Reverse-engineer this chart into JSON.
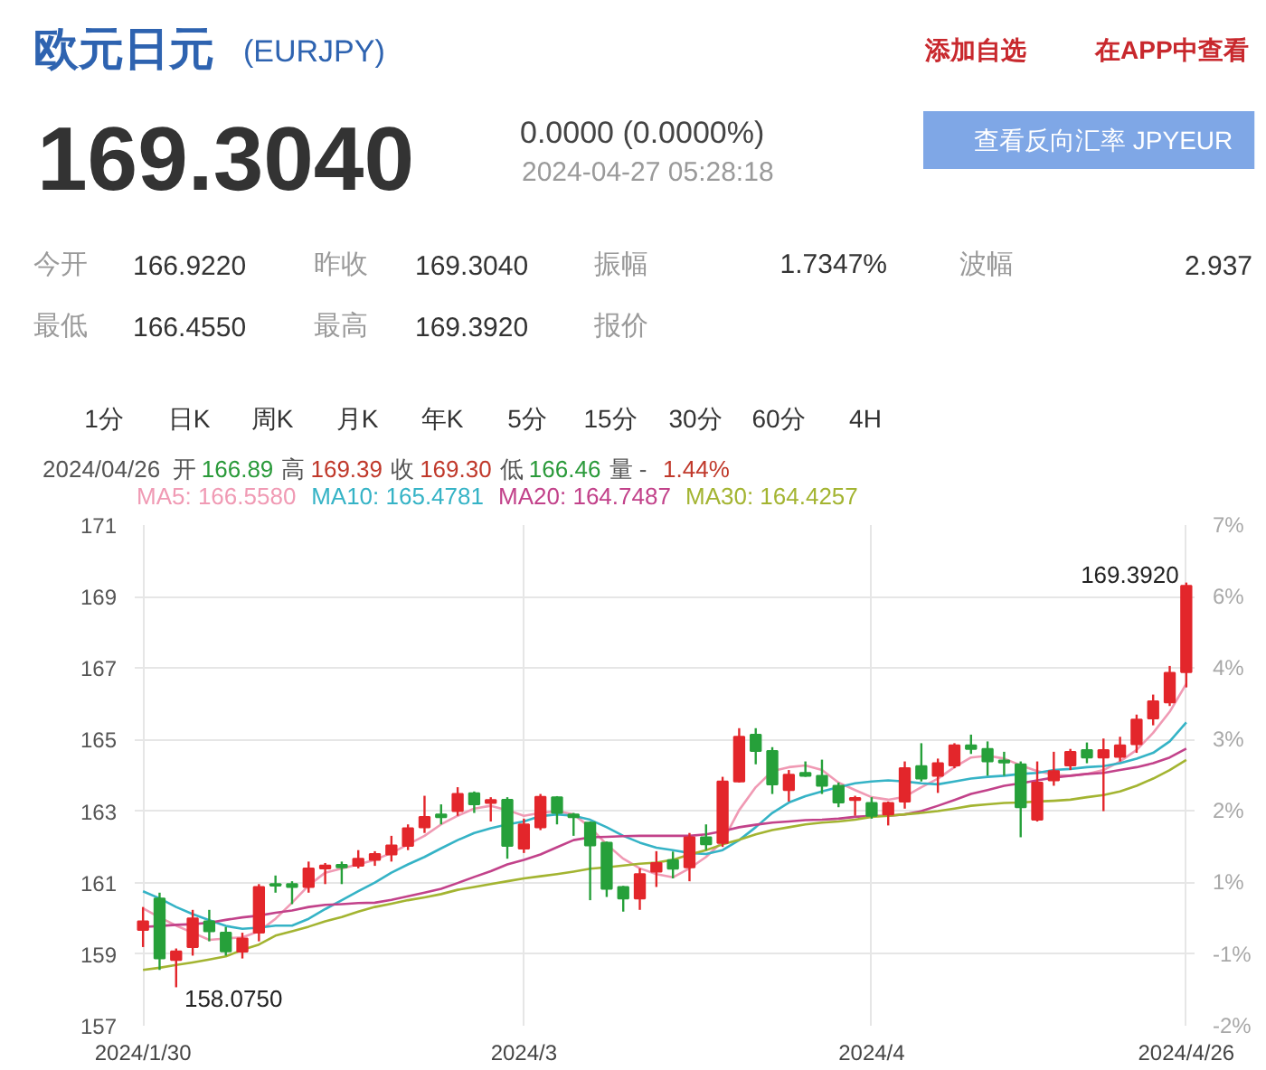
{
  "chart_data": {
    "type": "candlestick",
    "title": "欧元日元",
    "subtitle": "(EURJPY)",
    "annotations": [
      "添加自选",
      "在APP中查看",
      "169.3040",
      "0.0000 (0.0000%)",
      "2024-04-27 05:28:18",
      "查看反向汇率 JPYEUR",
      "今开",
      "166.9220",
      "昨收",
      "169.3040",
      "振幅",
      "1.7347%",
      "波幅",
      "2.937",
      "最低",
      "166.4550",
      "最高",
      "169.3920",
      "报价",
      "1分",
      "日K",
      "周K",
      "月K",
      "年K",
      "5分",
      "15分",
      "30分",
      "60分",
      "4H",
      "2024/04/26",
      "开",
      "166.89",
      "高",
      "169.39",
      "收",
      "169.30",
      "低",
      "166.46",
      "量 -",
      "1.44%",
      "158.0750",
      {
        "text": "169.3920",
        "x": "2024/4/26",
        "y": 169.392
      }
    ],
    "categories": [
      "2024/1/30",
      null,
      null,
      null,
      null,
      null,
      null,
      null,
      null,
      null,
      null,
      null,
      null,
      null,
      null,
      null,
      null,
      null,
      null,
      null,
      null,
      null,
      null,
      "2024/3",
      null,
      null,
      null,
      null,
      null,
      null,
      null,
      null,
      null,
      null,
      null,
      null,
      null,
      null,
      null,
      null,
      null,
      null,
      null,
      null,
      "2024/4",
      null,
      null,
      null,
      null,
      null,
      null,
      null,
      null,
      null,
      null,
      null,
      null,
      null,
      null,
      null,
      null,
      null,
      null,
      "2024/4/26"
    ],
    "ohlc": [
      [
        159.68,
        160.32,
        159.2,
        159.92
      ],
      [
        160.56,
        160.72,
        158.56,
        158.88
      ],
      [
        158.84,
        159.16,
        158.075,
        159.08
      ],
      [
        159.2,
        160.24,
        158.96,
        160.0
      ],
      [
        159.92,
        160.24,
        159.36,
        159.64
      ],
      [
        159.6,
        159.76,
        158.96,
        159.08
      ],
      [
        159.07,
        159.6,
        158.88,
        159.44
      ],
      [
        159.6,
        160.96,
        159.36,
        160.88
      ],
      [
        160.96,
        161.2,
        160.72,
        160.92
      ],
      [
        160.96,
        161.04,
        160.4,
        160.88
      ],
      [
        160.88,
        161.59,
        160.72,
        161.4
      ],
      [
        161.4,
        161.55,
        160.96,
        161.48
      ],
      [
        161.5,
        161.59,
        160.96,
        161.43
      ],
      [
        161.47,
        161.91,
        161.4,
        161.67
      ],
      [
        161.64,
        161.88,
        161.47,
        161.8
      ],
      [
        161.79,
        162.31,
        161.59,
        162.04
      ],
      [
        162.03,
        162.63,
        161.91,
        162.52
      ],
      [
        162.55,
        163.43,
        162.39,
        162.84
      ],
      [
        162.91,
        163.19,
        162.63,
        162.83
      ],
      [
        163.0,
        163.67,
        162.87,
        163.48
      ],
      [
        163.5,
        163.55,
        162.95,
        163.19
      ],
      [
        163.23,
        163.39,
        162.71,
        163.31
      ],
      [
        163.32,
        163.39,
        161.67,
        162.03
      ],
      [
        161.95,
        162.79,
        161.83,
        162.63
      ],
      [
        162.55,
        163.48,
        162.47,
        163.4
      ],
      [
        163.39,
        163.42,
        162.63,
        162.95
      ],
      [
        162.91,
        162.95,
        162.31,
        162.83
      ],
      [
        162.68,
        162.71,
        160.51,
        162.04
      ],
      [
        162.12,
        162.15,
        160.6,
        160.83
      ],
      [
        160.88,
        160.91,
        160.19,
        160.56
      ],
      [
        160.56,
        161.4,
        160.24,
        161.24
      ],
      [
        161.31,
        161.88,
        160.88,
        161.55
      ],
      [
        161.63,
        161.87,
        161.12,
        161.39
      ],
      [
        161.43,
        162.39,
        161.04,
        162.27
      ],
      [
        162.27,
        162.63,
        161.91,
        162.07
      ],
      [
        162.11,
        163.96,
        162.0,
        163.83
      ],
      [
        163.83,
        165.32,
        163.8,
        165.08
      ],
      [
        165.14,
        165.32,
        164.31,
        164.68
      ],
      [
        164.68,
        164.79,
        163.48,
        163.75
      ],
      [
        163.59,
        164.15,
        163.27,
        164.02
      ],
      [
        164.07,
        164.39,
        163.96,
        163.99
      ],
      [
        163.99,
        164.44,
        163.48,
        163.71
      ],
      [
        163.71,
        163.8,
        163.11,
        163.24
      ],
      [
        163.31,
        163.43,
        162.87,
        163.37
      ],
      [
        163.23,
        163.39,
        162.79,
        162.87
      ],
      [
        162.91,
        163.27,
        162.6,
        163.23
      ],
      [
        163.27,
        164.39,
        163.07,
        164.2
      ],
      [
        164.26,
        164.9,
        163.83,
        163.91
      ],
      [
        163.99,
        164.47,
        163.51,
        164.34
      ],
      [
        164.28,
        164.9,
        164.2,
        164.84
      ],
      [
        164.84,
        165.14,
        164.6,
        164.74
      ],
      [
        164.74,
        164.95,
        163.99,
        164.39
      ],
      [
        164.42,
        164.66,
        163.99,
        164.36
      ],
      [
        164.31,
        164.39,
        162.27,
        163.11
      ],
      [
        162.76,
        164.39,
        162.71,
        163.8
      ],
      [
        163.86,
        164.66,
        163.71,
        164.12
      ],
      [
        164.28,
        164.74,
        164.15,
        164.66
      ],
      [
        164.71,
        164.92,
        164.34,
        164.5
      ],
      [
        164.5,
        165.03,
        163.0,
        164.71
      ],
      [
        164.52,
        165.08,
        164.39,
        164.84
      ],
      [
        164.87,
        165.7,
        164.63,
        165.56
      ],
      [
        165.59,
        166.26,
        165.4,
        166.07
      ],
      [
        166.04,
        167.06,
        165.94,
        166.87
      ],
      [
        166.89,
        169.392,
        166.46,
        169.3
      ]
    ],
    "colors": [
      "#e3262b",
      "#26a03a",
      "#e3262b",
      "#e3262b",
      "#26a03a",
      "#26a03a",
      "#e3262b",
      "#e3262b",
      "#26a03a",
      "#26a03a",
      "#e3262b",
      "#e3262b",
      "#26a03a",
      "#e3262b",
      "#e3262b",
      "#e3262b",
      "#e3262b",
      "#e3262b",
      "#26a03a",
      "#e3262b",
      "#26a03a",
      "#e3262b",
      "#26a03a",
      "#e3262b",
      "#e3262b",
      "#26a03a",
      "#26a03a",
      "#26a03a",
      "#26a03a",
      "#26a03a",
      "#e3262b",
      "#e3262b",
      "#26a03a",
      "#e3262b",
      "#26a03a",
      "#e3262b",
      "#e3262b",
      "#26a03a",
      "#26a03a",
      "#e3262b",
      "#26a03a",
      "#26a03a",
      "#26a03a",
      "#e3262b",
      "#26a03a",
      "#e3262b",
      "#e3262b",
      "#26a03a",
      "#e3262b",
      "#e3262b",
      "#26a03a",
      "#26a03a",
      "#26a03a",
      "#26a03a",
      "#e3262b",
      "#e3262b",
      "#e3262b",
      "#26a03a",
      "#e3262b",
      "#e3262b",
      "#e3262b",
      "#e3262b",
      "#e3262b",
      "#e3262b"
    ],
    "series": [
      {
        "name": "MA5: 166.5580",
        "type": "line",
        "color": "#f09ab4",
        "values": [
          160.28,
          160.03,
          159.8,
          159.6,
          159.4,
          159.44,
          159.47,
          159.64,
          159.99,
          160.44,
          160.92,
          161.28,
          161.4,
          161.51,
          161.64,
          161.83,
          162.07,
          162.31,
          162.63,
          162.87,
          163.07,
          163.15,
          163.03,
          162.87,
          162.95,
          163.0,
          162.91,
          162.55,
          162.07,
          161.67,
          161.4,
          161.24,
          161.15,
          161.4,
          161.72,
          162.15,
          163.03,
          163.67,
          164.12,
          164.23,
          164.28,
          164.15,
          163.8,
          163.59,
          163.39,
          163.32,
          163.4,
          163.67,
          163.91,
          164.23,
          164.5,
          164.55,
          164.47,
          164.28,
          164.12,
          164.02,
          163.99,
          164.04,
          164.15,
          164.39,
          164.71,
          165.19,
          165.78,
          166.56
        ]
      },
      {
        "name": "MA10: 165.4781",
        "type": "line",
        "color": "#35b3c6",
        "values": [
          160.76,
          160.56,
          160.32,
          160.12,
          159.95,
          159.79,
          159.71,
          159.74,
          159.8,
          159.8,
          159.99,
          160.26,
          160.51,
          160.76,
          161.0,
          161.28,
          161.51,
          161.72,
          161.96,
          162.19,
          162.39,
          162.52,
          162.63,
          162.71,
          162.86,
          162.91,
          162.87,
          162.76,
          162.55,
          162.31,
          162.12,
          161.98,
          161.91,
          161.83,
          161.8,
          161.91,
          162.19,
          162.55,
          162.95,
          163.24,
          163.42,
          163.55,
          163.67,
          163.78,
          163.83,
          163.86,
          163.83,
          163.78,
          163.75,
          163.83,
          163.91,
          163.96,
          163.99,
          164.04,
          164.07,
          164.15,
          164.18,
          164.23,
          164.26,
          164.34,
          164.47,
          164.63,
          164.95,
          165.48
        ]
      },
      {
        "name": "MA20: 164.7487",
        "type": "line",
        "color": "#c2428a",
        "values": [
          159.76,
          159.79,
          159.82,
          159.84,
          159.88,
          159.96,
          160.03,
          160.08,
          160.16,
          160.22,
          160.32,
          160.38,
          160.4,
          160.43,
          160.44,
          160.52,
          160.62,
          160.72,
          160.83,
          160.99,
          161.16,
          161.32,
          161.51,
          161.64,
          161.79,
          161.99,
          162.19,
          162.27,
          162.28,
          162.3,
          162.31,
          162.31,
          162.31,
          162.31,
          162.35,
          162.44,
          162.55,
          162.62,
          162.68,
          162.71,
          162.75,
          162.76,
          162.79,
          162.84,
          162.87,
          162.87,
          162.91,
          163.0,
          163.15,
          163.31,
          163.48,
          163.59,
          163.71,
          163.78,
          163.86,
          163.94,
          163.99,
          164.04,
          164.07,
          164.15,
          164.23,
          164.34,
          164.5,
          164.75
        ]
      },
      {
        "name": "MA30: 164.4257",
        "type": "line",
        "color": "#a3b431",
        "values": [
          158.56,
          158.62,
          158.7,
          158.77,
          158.85,
          158.94,
          159.12,
          159.27,
          159.52,
          159.64,
          159.77,
          159.92,
          160.04,
          160.19,
          160.32,
          160.41,
          160.51,
          160.59,
          160.68,
          160.8,
          160.88,
          160.96,
          161.04,
          161.12,
          161.18,
          161.24,
          161.31,
          161.39,
          161.43,
          161.48,
          161.53,
          161.56,
          161.64,
          161.79,
          161.91,
          162.07,
          162.2,
          162.35,
          162.47,
          162.55,
          162.63,
          162.68,
          162.71,
          162.76,
          162.84,
          162.87,
          162.91,
          162.95,
          163.0,
          163.07,
          163.15,
          163.19,
          163.23,
          163.24,
          163.27,
          163.29,
          163.32,
          163.39,
          163.45,
          163.55,
          163.71,
          163.91,
          164.15,
          164.43
        ]
      }
    ],
    "ylim": [
      157,
      171
    ],
    "yticks": [
      157,
      159,
      161,
      163,
      165,
      167,
      169,
      171
    ],
    "y2lim": [
      -1.83,
      6.93
    ],
    "y2ticks": [
      {
        "value": 6.93,
        "label": "7%"
      },
      {
        "value": 5.68,
        "label": "6%"
      },
      {
        "value": 4.43,
        "label": "4%"
      },
      {
        "value": 3.18,
        "label": "3%"
      },
      {
        "value": 1.93,
        "label": "2%"
      },
      {
        "value": 0.68,
        "label": "1%"
      },
      {
        "value": -0.58,
        "label": "-1%"
      },
      {
        "value": -1.83,
        "label": "-2%"
      }
    ],
    "grid": true,
    "legend": "top left"
  }
}
